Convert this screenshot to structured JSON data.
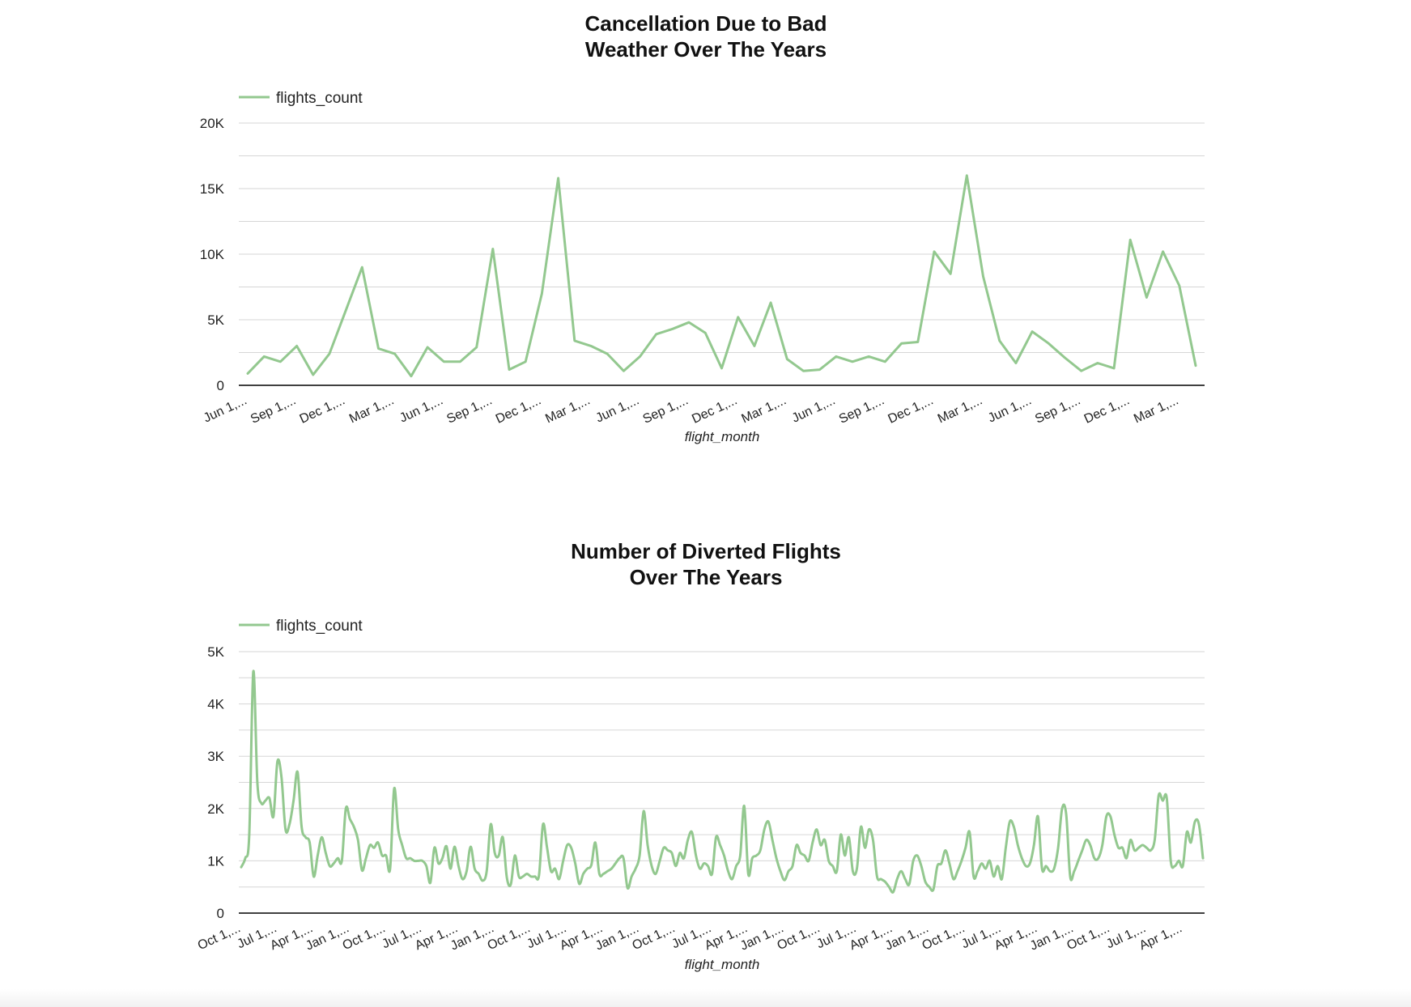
{
  "colors": {
    "series": "#93c88f",
    "grid": "#d6d6d6",
    "axis": "#000000"
  },
  "chart_data": [
    {
      "type": "line",
      "title": "Cancellation Due to Bad Weather Over The Years",
      "title_lines": [
        "Cancellation Due to Bad",
        "Weather Over The Years"
      ],
      "xlabel": "flight_month",
      "ylabel": "",
      "legend": {
        "position": "top-left",
        "entries": [
          "flights_count"
        ]
      },
      "grid": true,
      "interpolation": "linear",
      "ylim": [
        0,
        20000
      ],
      "yticks": [
        0,
        5000,
        10000,
        15000,
        20000
      ],
      "ytick_labels": [
        "0",
        "5K",
        "10K",
        "15K",
        "20K"
      ],
      "xtick_labels": [
        "Jun 1,...",
        "Sep 1,...",
        "Dec 1,...",
        "Mar 1,...",
        "Jun 1,...",
        "Sep 1,...",
        "Dec 1,...",
        "Mar 1,...",
        "Jun 1,...",
        "Sep 1,...",
        "Dec 1,...",
        "Mar 1,...",
        "Jun 1,...",
        "Sep 1,...",
        "Dec 1,...",
        "Mar 1,...",
        "Jun 1,...",
        "Sep 1,...",
        "Dec 1,...",
        "Mar 1,..."
      ],
      "xtick_every": 3,
      "series": [
        {
          "name": "flights_count",
          "values": [
            900,
            2200,
            1800,
            3000,
            800,
            2400,
            5700,
            9000,
            2800,
            2400,
            700,
            2900,
            1800,
            1800,
            2900,
            10400,
            1200,
            1800,
            7000,
            15800,
            3400,
            3000,
            2400,
            1100,
            2200,
            3900,
            4300,
            4800,
            4000,
            1300,
            5200,
            3000,
            6300,
            2000,
            1100,
            1200,
            2200,
            1800,
            2200,
            1800,
            3200,
            3300,
            10200,
            8500,
            16000,
            8300,
            3400,
            1700,
            4100,
            3200,
            2100,
            1100,
            1700,
            1300,
            11100,
            6700,
            10200,
            7600,
            1500
          ]
        }
      ]
    },
    {
      "type": "line",
      "title": "Number of Diverted Flights Over The Years",
      "title_lines": [
        "Number of Diverted Flights",
        "Over The Years"
      ],
      "xlabel": "flight_month",
      "ylabel": "",
      "legend": {
        "position": "top-left",
        "entries": [
          "flights_count"
        ]
      },
      "grid": true,
      "interpolation": "smooth",
      "ylim": [
        0,
        5000
      ],
      "yticks": [
        0,
        1000,
        2000,
        3000,
        4000,
        5000
      ],
      "ytick_labels": [
        "0",
        "1K",
        "2K",
        "3K",
        "4K",
        "5K"
      ],
      "xtick_labels": [
        "Oct 1,...",
        "Jul 1,...",
        "Apr 1,...",
        "Jan 1,...",
        "Oct 1,...",
        "Jul 1,...",
        "Apr 1,...",
        "Jan 1,...",
        "Oct 1,...",
        "Jul 1,...",
        "Apr 1,...",
        "Jan 1,...",
        "Oct 1,...",
        "Jul 1,...",
        "Apr 1,...",
        "Jan 1,...",
        "Oct 1,...",
        "Jul 1,...",
        "Apr 1,...",
        "Jan 1,...",
        "Oct 1,...",
        "Jul 1,...",
        "Apr 1,...",
        "Jan 1,...",
        "Oct 1,...",
        "Jul 1,...",
        "Apr 1,..."
      ],
      "xtick_every": 9,
      "series": [
        {
          "name": "flights_count",
          "values": [
            880,
            1050,
            1500,
            4620,
            2500,
            2100,
            2150,
            2200,
            1850,
            2900,
            2600,
            1600,
            1700,
            2150,
            2700,
            1650,
            1450,
            1350,
            700,
            1100,
            1450,
            1150,
            900,
            950,
            1050,
            1000,
            2000,
            1800,
            1650,
            1400,
            820,
            1050,
            1300,
            1250,
            1350,
            1100,
            1100,
            850,
            2380,
            1600,
            1300,
            1050,
            1050,
            1000,
            1000,
            1000,
            900,
            580,
            1250,
            950,
            1050,
            1280,
            850,
            1270,
            900,
            650,
            800,
            1270,
            850,
            750,
            620,
            800,
            1700,
            1150,
            1100,
            1450,
            680,
            550,
            1100,
            700,
            700,
            750,
            700,
            700,
            720,
            1700,
            1250,
            800,
            850,
            650,
            1000,
            1300,
            1250,
            950,
            560,
            750,
            850,
            920,
            1350,
            750,
            750,
            800,
            850,
            950,
            1050,
            1050,
            480,
            700,
            850,
            1100,
            1950,
            1300,
            900,
            750,
            1000,
            1250,
            1200,
            1150,
            900,
            1150,
            1050,
            1400,
            1550,
            1100,
            850,
            950,
            900,
            750,
            1450,
            1300,
            1100,
            800,
            650,
            900,
            1100,
            2050,
            750,
            1050,
            1100,
            1200,
            1600,
            1750,
            1400,
            1050,
            800,
            630,
            800,
            900,
            1300,
            1150,
            1100,
            1000,
            1350,
            1600,
            1300,
            1400,
            1000,
            900,
            800,
            1500,
            1100,
            1450,
            800,
            850,
            1650,
            1250,
            1600,
            1400,
            700,
            650,
            600,
            500,
            400,
            650,
            800,
            650,
            550,
            1000,
            1100,
            900,
            600,
            500,
            450,
            900,
            950,
            1200,
            950,
            650,
            800,
            1000,
            1250,
            1550,
            700,
            800,
            950,
            850,
            1000,
            700,
            900,
            650,
            1250,
            1750,
            1650,
            1300,
            1050,
            900,
            950,
            1300,
            1850,
            850,
            900,
            800,
            850,
            1250,
            2000,
            1900,
            700,
            800,
            1000,
            1200,
            1400,
            1300,
            1050,
            1050,
            1300,
            1850,
            1850,
            1500,
            1250,
            1250,
            1050,
            1400,
            1200,
            1250,
            1300,
            1250,
            1200,
            1400,
            2250,
            2150,
            2200,
            1000,
            900,
            1000,
            900,
            1550,
            1350,
            1750,
            1700,
            1050
          ]
        }
      ]
    }
  ]
}
